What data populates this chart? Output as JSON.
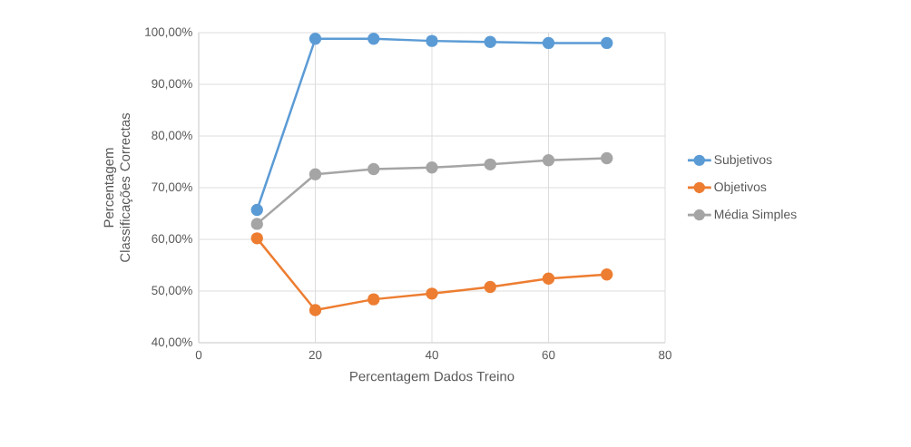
{
  "chart_data": {
    "type": "line",
    "xlabel": "Percentagem Dados Treino",
    "ylabel": "Percentagem Classificações Correctas",
    "x": [
      10,
      20,
      30,
      40,
      50,
      60,
      70
    ],
    "series": [
      {
        "name": "Subjetivos",
        "color": "#5b9bd5",
        "values": [
          65.7,
          98.8,
          98.8,
          98.4,
          98.2,
          98.0,
          98.0
        ]
      },
      {
        "name": "Objetivos",
        "color": "#ed7d31",
        "values": [
          60.2,
          46.3,
          48.4,
          49.5,
          50.8,
          52.4,
          53.2
        ]
      },
      {
        "name": "Média Simples",
        "color": "#a5a5a5",
        "values": [
          63.0,
          72.6,
          73.6,
          73.9,
          74.5,
          75.3,
          75.7
        ]
      }
    ],
    "xlim": [
      0,
      80
    ],
    "xticks": [
      0,
      20,
      40,
      60,
      80
    ],
    "ylim": [
      40,
      100
    ],
    "yticks": [
      {
        "value": 40,
        "label": "40,00%"
      },
      {
        "value": 50,
        "label": "50,00%"
      },
      {
        "value": 60,
        "label": "60,00%"
      },
      {
        "value": 70,
        "label": "70,00%"
      },
      {
        "value": 80,
        "label": "80,00%"
      },
      {
        "value": 90,
        "label": "90,00%"
      },
      {
        "value": 100,
        "label": "100,00%"
      }
    ],
    "grid": true,
    "legend": "right",
    "marker": "circle",
    "line_style": "solid"
  }
}
